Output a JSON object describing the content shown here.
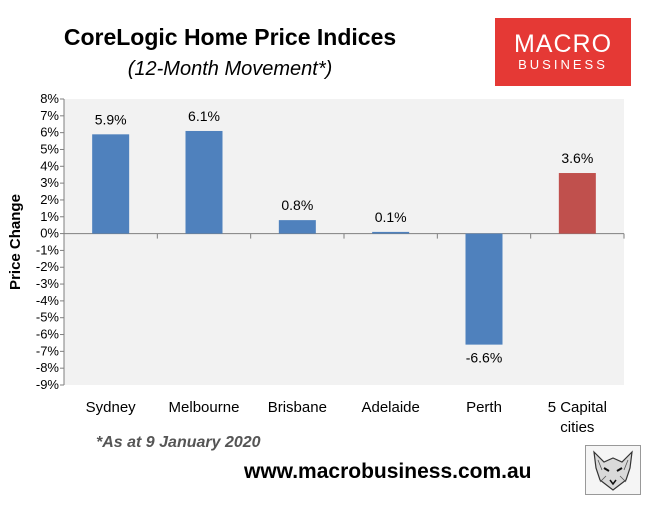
{
  "title": "CoreLogic Home Price Indices",
  "subtitle": "(12-Month Movement*)",
  "footnote": "*As at 9 January 2020",
  "url": "www.macrobusiness.com.au",
  "logo": {
    "line1": "MACRO",
    "line2": "BUSINESS",
    "color": "#e53935"
  },
  "logo_mascot": "wolf-icon",
  "chart_data": {
    "type": "bar",
    "title": "CoreLogic Home Price Indices",
    "subtitle": "(12-Month Movement*)",
    "xlabel": "",
    "ylabel": "Price Change",
    "categories": [
      "Sydney",
      "Melbourne",
      "Brisbane",
      "Adelaide",
      "Perth",
      "5 Capital cities"
    ],
    "values": [
      5.9,
      6.1,
      0.8,
      0.1,
      -6.6,
      3.6
    ],
    "data_labels": [
      "5.9%",
      "6.1%",
      "0.8%",
      "0.1%",
      "-6.6%",
      "3.6%"
    ],
    "bar_colors": [
      "#4f81bd",
      "#4f81bd",
      "#4f81bd",
      "#4f81bd",
      "#4f81bd",
      "#c0504d"
    ],
    "ylim": [
      -9,
      8
    ],
    "yticks": [
      "8%",
      "7%",
      "6%",
      "5%",
      "4%",
      "3%",
      "2%",
      "1%",
      "0%",
      "-1%",
      "-2%",
      "-3%",
      "-4%",
      "-5%",
      "-6%",
      "-7%",
      "-8%",
      "-9%"
    ],
    "grid": false,
    "legend": "none",
    "plot_background": "#f2f2f2"
  }
}
